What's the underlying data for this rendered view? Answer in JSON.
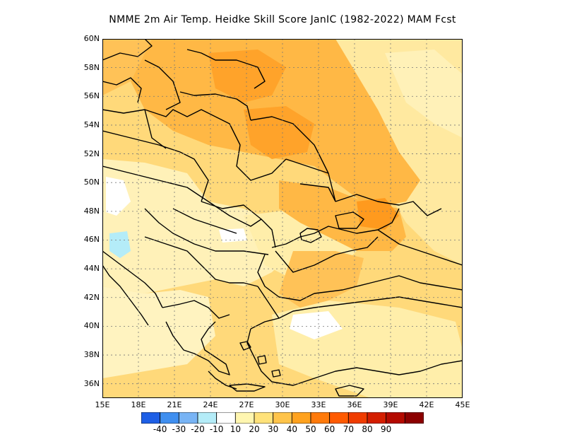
{
  "title": "NMME  2m Air Temp. Heidke Skill Score JanIC (1982-2022) MAM Fcst",
  "map": {
    "lon_range": [
      15,
      45
    ],
    "lat_range": [
      35,
      60
    ],
    "lat_ticks": [
      "60N",
      "58N",
      "56N",
      "54N",
      "52N",
      "50N",
      "48N",
      "46N",
      "44N",
      "42N",
      "40N",
      "38N",
      "36N"
    ],
    "lon_ticks": [
      "15E",
      "18E",
      "21E",
      "24E",
      "27E",
      "30E",
      "33E",
      "36E",
      "39E",
      "42E",
      "45E"
    ],
    "gridlines": true
  },
  "colorbar": {
    "colors": [
      "#1e5fe6",
      "#3f8ff0",
      "#78b4f5",
      "#b4ecf8",
      "#ffffff",
      "#fff6b0",
      "#ffe27a",
      "#ffc44a",
      "#ffa21e",
      "#ff7a0a",
      "#ff5a00",
      "#f03c00",
      "#d41e00",
      "#b40a00",
      "#8c0000"
    ],
    "labels": [
      "-40",
      "-30",
      "-20",
      "-10",
      "10",
      "20",
      "30",
      "40",
      "50",
      "60",
      "70",
      "80",
      "90"
    ]
  }
}
